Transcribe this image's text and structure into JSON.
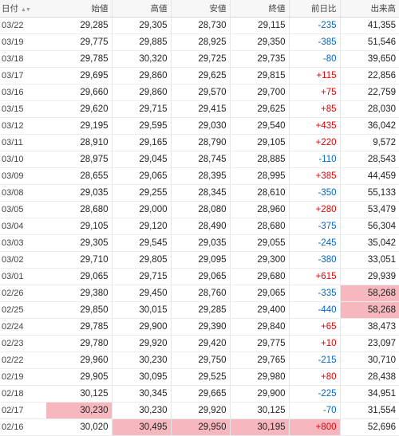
{
  "header": {
    "date": "日付",
    "open": "始値",
    "high": "高値",
    "low": "安値",
    "close": "終値",
    "change": "前日比",
    "volume": "出来高"
  },
  "rows": [
    {
      "date": "03/22",
      "open": "29,285",
      "high": "29,305",
      "low": "28,730",
      "close": "29,115",
      "change": "-235",
      "volume": "41,355"
    },
    {
      "date": "03/19",
      "open": "29,775",
      "high": "29,885",
      "low": "28,925",
      "close": "29,350",
      "change": "-385",
      "volume": "51,546"
    },
    {
      "date": "03/18",
      "open": "29,785",
      "high": "30,320",
      "low": "29,725",
      "close": "29,735",
      "change": "-80",
      "volume": "39,650"
    },
    {
      "date": "03/17",
      "open": "29,695",
      "high": "29,860",
      "low": "29,625",
      "close": "29,815",
      "change": "+115",
      "volume": "22,856"
    },
    {
      "date": "03/16",
      "open": "29,660",
      "high": "29,860",
      "low": "29,570",
      "close": "29,700",
      "change": "+75",
      "volume": "22,759"
    },
    {
      "date": "03/15",
      "open": "29,620",
      "high": "29,715",
      "low": "29,415",
      "close": "29,625",
      "change": "+85",
      "volume": "28,030"
    },
    {
      "date": "03/12",
      "open": "29,195",
      "high": "29,595",
      "low": "29,030",
      "close": "29,540",
      "change": "+435",
      "volume": "36,042"
    },
    {
      "date": "03/11",
      "open": "28,910",
      "high": "29,165",
      "low": "28,790",
      "close": "29,105",
      "change": "+220",
      "volume": "9,572"
    },
    {
      "date": "03/10",
      "open": "28,975",
      "high": "29,045",
      "low": "28,745",
      "close": "28,885",
      "change": "-110",
      "volume": "28,543"
    },
    {
      "date": "03/09",
      "open": "28,655",
      "high": "29,065",
      "low": "28,395",
      "close": "28,995",
      "change": "+385",
      "volume": "44,459"
    },
    {
      "date": "03/08",
      "open": "29,035",
      "high": "29,255",
      "low": "28,345",
      "close": "28,610",
      "change": "-350",
      "volume": "55,133"
    },
    {
      "date": "03/05",
      "open": "28,680",
      "high": "29,000",
      "low": "28,080",
      "close": "28,960",
      "change": "+280",
      "volume": "53,479"
    },
    {
      "date": "03/04",
      "open": "29,105",
      "high": "29,120",
      "low": "28,490",
      "close": "28,680",
      "change": "-375",
      "volume": "56,304"
    },
    {
      "date": "03/03",
      "open": "29,305",
      "high": "29,545",
      "low": "29,035",
      "close": "29,055",
      "change": "-245",
      "volume": "35,042"
    },
    {
      "date": "03/02",
      "open": "29,710",
      "high": "29,805",
      "low": "29,095",
      "close": "29,300",
      "change": "-380",
      "volume": "33,051"
    },
    {
      "date": "03/01",
      "open": "29,065",
      "high": "29,715",
      "low": "29,065",
      "close": "29,680",
      "change": "+615",
      "volume": "29,939"
    },
    {
      "date": "02/26",
      "open": "29,380",
      "high": "29,450",
      "low": "28,760",
      "close": "29,065",
      "change": "-335",
      "volume": "58,268"
    },
    {
      "date": "02/25",
      "open": "29,850",
      "high": "30,015",
      "low": "29,285",
      "close": "29,400",
      "change": "-440",
      "volume": "58,268"
    },
    {
      "date": "02/24",
      "open": "29,785",
      "high": "29,900",
      "low": "29,390",
      "close": "29,840",
      "change": "+65",
      "volume": "38,473"
    },
    {
      "date": "02/23",
      "open": "29,780",
      "high": "29,920",
      "low": "29,420",
      "close": "29,775",
      "change": "+10",
      "volume": "23,097"
    },
    {
      "date": "02/22",
      "open": "29,960",
      "high": "30,230",
      "low": "29,750",
      "close": "29,765",
      "change": "-215",
      "volume": "30,710"
    },
    {
      "date": "02/19",
      "open": "29,905",
      "high": "30,095",
      "low": "29,525",
      "close": "29,980",
      "change": "+80",
      "volume": "28,438"
    },
    {
      "date": "02/18",
      "open": "30,125",
      "high": "30,345",
      "low": "29,665",
      "close": "29,900",
      "change": "-225",
      "volume": "34,951"
    },
    {
      "date": "02/17",
      "open": "30,230",
      "high": "30,230",
      "low": "29,920",
      "close": "30,125",
      "change": "-70",
      "volume": "31,554"
    },
    {
      "date": "02/16",
      "open": "30,020",
      "high": "30,495",
      "low": "29,950",
      "close": "30,195",
      "change": "+800",
      "volume": "52,696"
    }
  ],
  "colors": {
    "positive": "#e60000",
    "negative": "#0066cc",
    "highlight": "#f7b7be"
  },
  "highlights": [
    {
      "row": 16,
      "col": "volume"
    },
    {
      "row": 17,
      "col": "volume"
    },
    {
      "row": 23,
      "col": "open"
    },
    {
      "row": 24,
      "col": "high"
    },
    {
      "row": 24,
      "col": "low"
    },
    {
      "row": 24,
      "col": "close"
    },
    {
      "row": 24,
      "col": "change"
    }
  ],
  "icons": {
    "sort": "sort-arrows-icon"
  }
}
